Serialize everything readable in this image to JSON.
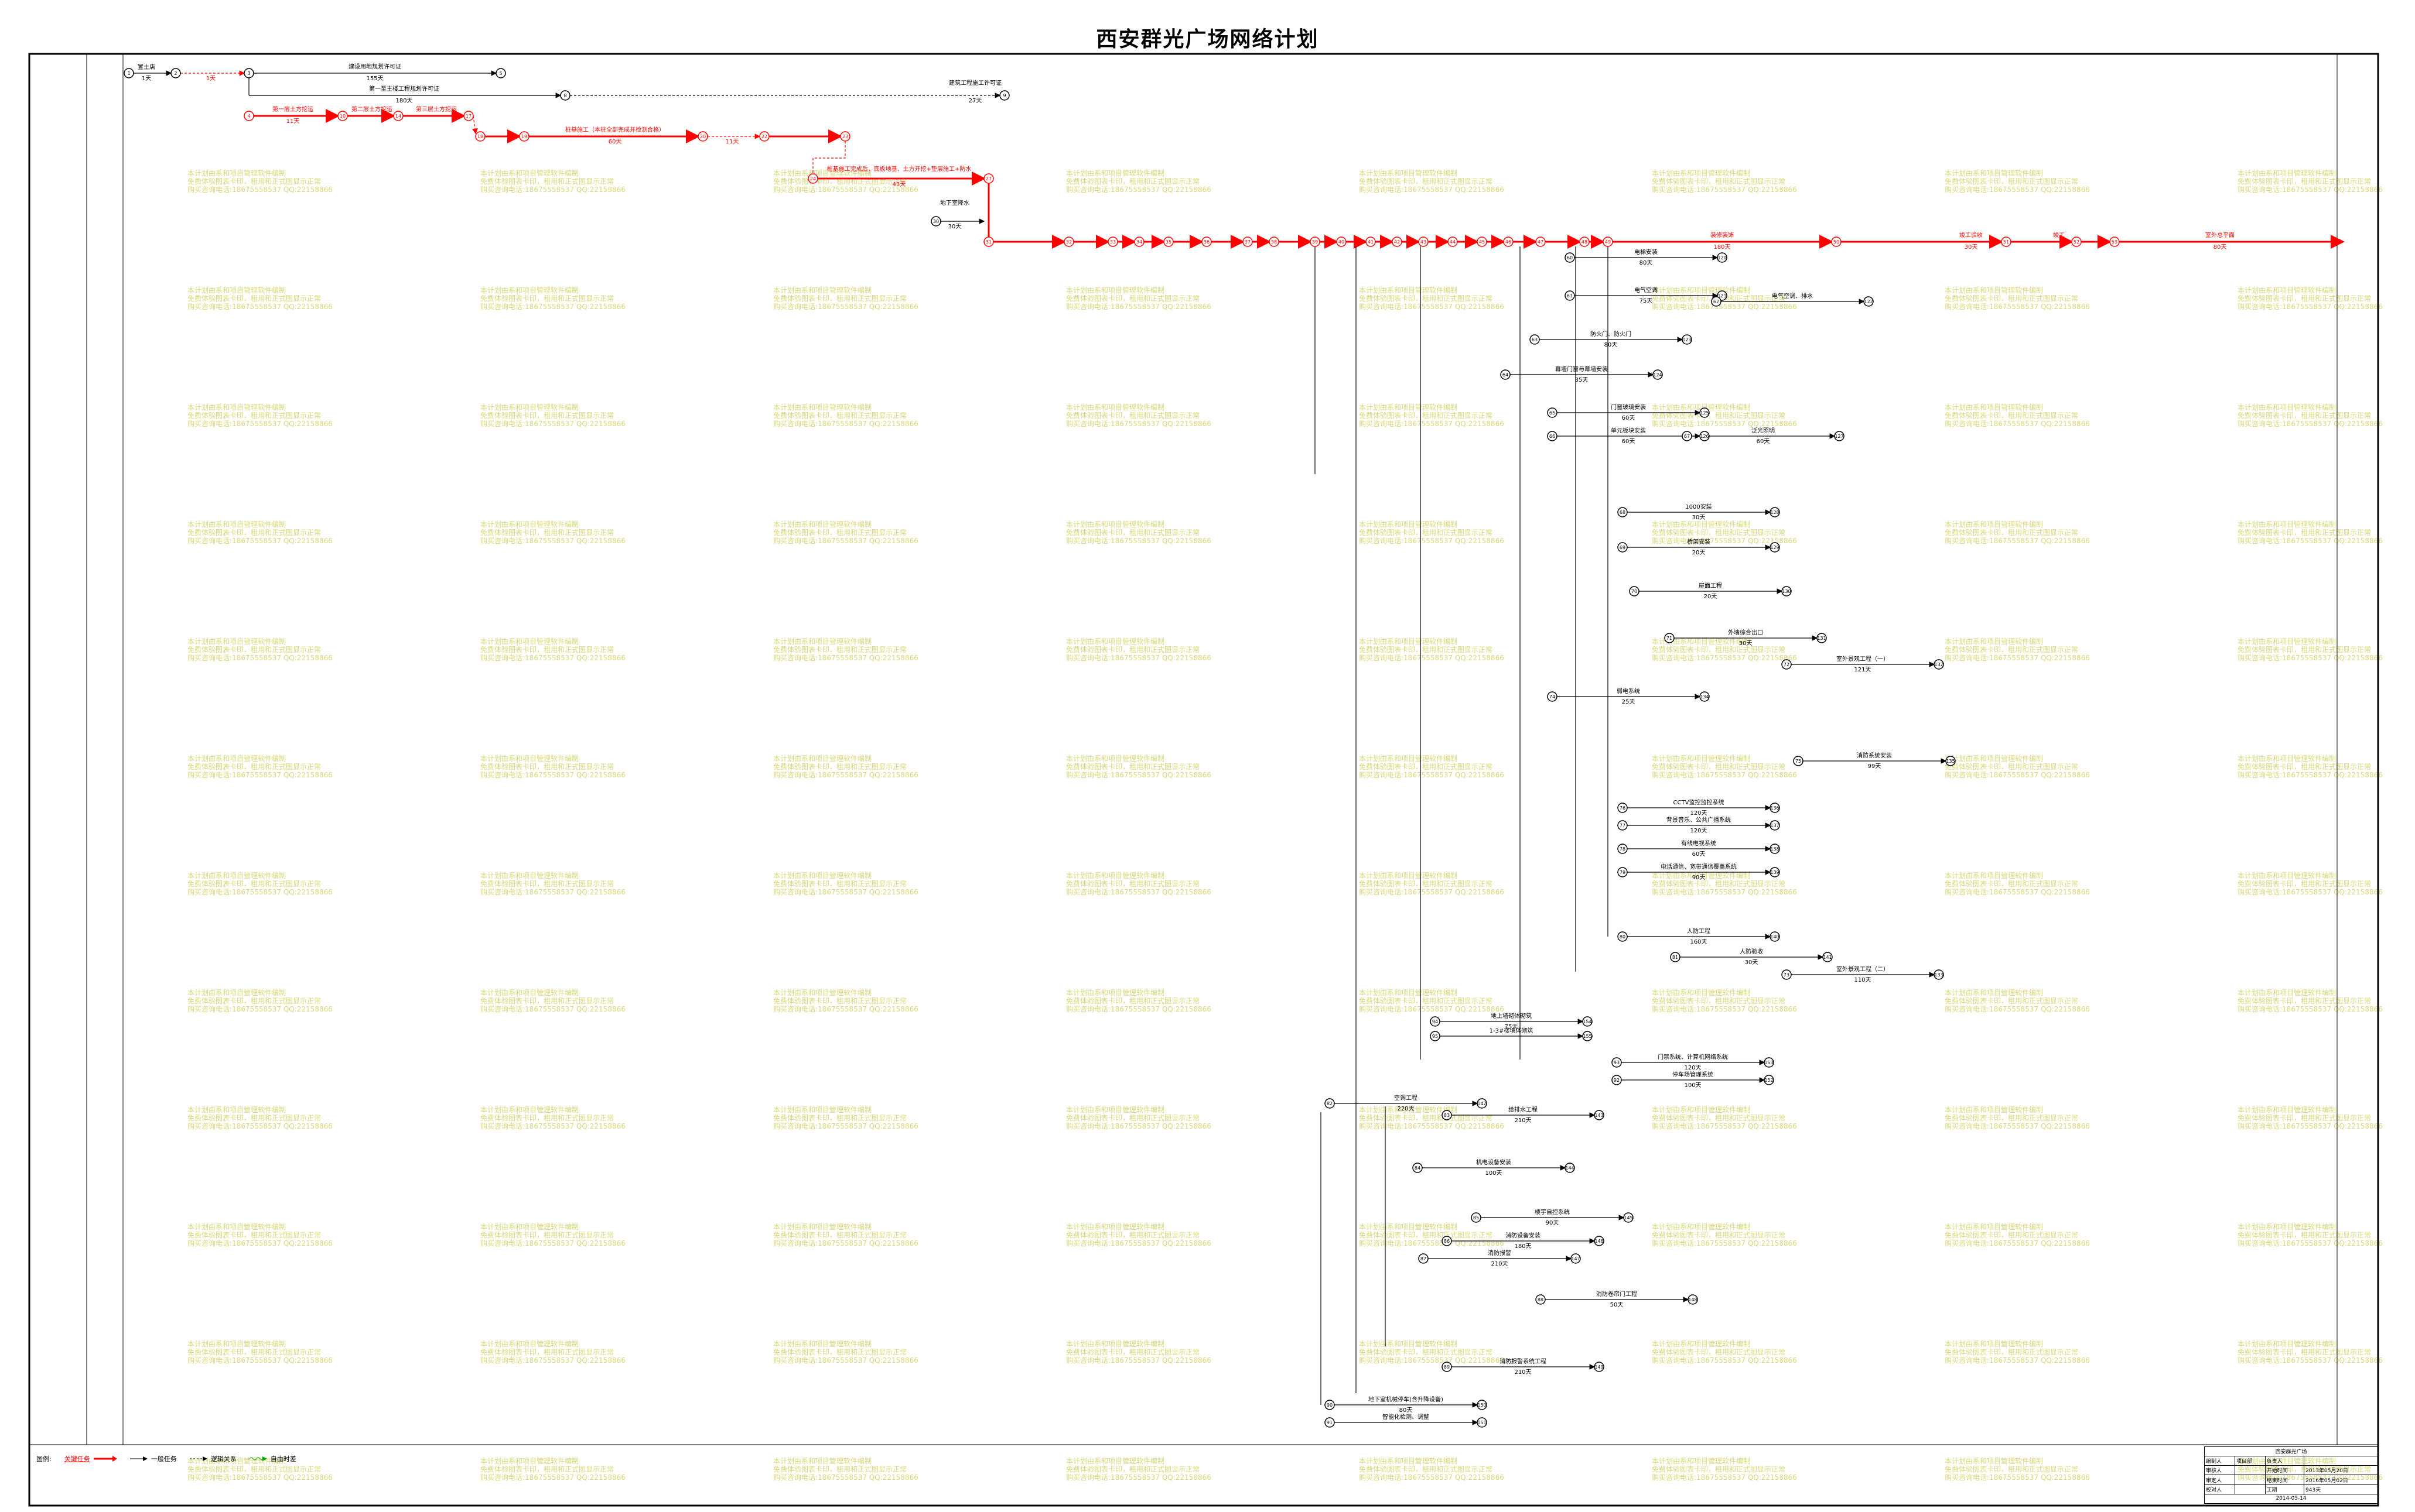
{
  "title": "西安群光广场网络计划",
  "watermark": {
    "lines": [
      "本计划由系和项目管理软件编制",
      "免费体验图表卡印，租用和正式图显示正常",
      "购买咨询电话:18675558537 QQ:22158866"
    ],
    "color": "#d8d87a"
  },
  "colors": {
    "critical": "#ff0000",
    "normal": "#000000",
    "accent_fill": "#ffcccc"
  },
  "diagram": {
    "critical_path": [
      {
        "from": "1",
        "to": "2",
        "label": "置土店",
        "duration": "1天"
      },
      {
        "from": "2",
        "to": "3",
        "label": "",
        "duration": "1天"
      },
      {
        "from": "4",
        "to": "10",
        "label": "第一层土方挖运",
        "duration": "11天"
      },
      {
        "from": "10",
        "to": "14",
        "label": "第二层土方挖运",
        "duration": "9天"
      },
      {
        "from": "14",
        "to": "17",
        "label": "第三层土方挖运",
        "duration": "14天"
      },
      {
        "from": "17",
        "to": "20",
        "label": "桩基施工（本桩全部完成并检测合格）",
        "duration": "60天"
      },
      {
        "from": "20",
        "to": "23",
        "label": "",
        "duration": "11天"
      },
      {
        "from": "24",
        "to": "27",
        "label": "桩基施工完成后，底板地基、土方开挖+垫层施工+防水",
        "duration": "43天"
      },
      {
        "from": "27",
        "to": "31",
        "label": "",
        "duration": "35天"
      },
      {
        "from": "31",
        "to": "55",
        "label": "",
        "duration": ""
      },
      {
        "from": "55",
        "to": "61",
        "label": "",
        "duration": ""
      },
      {
        "from": "61",
        "to": "89",
        "label": "装修装饰",
        "duration": "180天"
      },
      {
        "from": "89",
        "to": "92",
        "label": "竣工验收",
        "duration": "30天"
      },
      {
        "from": "92",
        "to": "94",
        "label": "竣工",
        "duration": "1天"
      },
      {
        "from": "94",
        "to": "END",
        "label": "室外总平面",
        "duration": "80天"
      }
    ],
    "top_tasks": [
      {
        "label": "建设用地规划许可证",
        "duration": "155天"
      },
      {
        "label": "第一至主楼工程规划许可证",
        "duration": "180天"
      },
      {
        "label": "建筑工程施工许可证",
        "duration": "27天"
      },
      {
        "label": "地下室降水",
        "duration": "30天"
      }
    ],
    "tasks": [
      {
        "label": "电梯安装",
        "duration": "80天"
      },
      {
        "label": "电气空调",
        "duration": "75天"
      },
      {
        "label": "电气空调、排水",
        "duration": ""
      },
      {
        "label": "防火门、防火门",
        "duration": "80天"
      },
      {
        "label": "幕墙门窗与幕墙安装",
        "duration": "35天"
      },
      {
        "label": "门窗玻璃安装",
        "duration": "60天"
      },
      {
        "label": "单元板块安装",
        "duration": "60天"
      },
      {
        "label": "泛光照明",
        "duration": "60天"
      },
      {
        "label": "1000安装",
        "duration": "30天"
      },
      {
        "label": "桥架安装",
        "duration": "20天"
      },
      {
        "label": "屋面工程",
        "duration": "20天"
      },
      {
        "label": "外墙综合出口",
        "duration": "30天"
      },
      {
        "label": "室外景观工程（一）",
        "duration": "121天"
      },
      {
        "label": "室外景观工程（二）",
        "duration": "110天"
      },
      {
        "label": "弱电系统",
        "duration": "25天"
      },
      {
        "label": "消防系统安装",
        "duration": "99天"
      },
      {
        "label": "CCTV监控监控系统",
        "duration": "120天"
      },
      {
        "label": "背景音乐、公共广播系统",
        "duration": "120天"
      },
      {
        "label": "有线电视系统",
        "duration": "60天"
      },
      {
        "label": "电话通信、宽带通信覆盖系统",
        "duration": "90天"
      },
      {
        "label": "人防工程",
        "duration": "160天"
      },
      {
        "label": "人防验收",
        "duration": "30天"
      },
      {
        "label": "空调工程",
        "duration": "220天"
      },
      {
        "label": "给排水工程",
        "duration": "210天"
      },
      {
        "label": "机电设备安装",
        "duration": "100天"
      },
      {
        "label": "楼宇自控系统",
        "duration": "90天"
      },
      {
        "label": "消防设备安装",
        "duration": "180天"
      },
      {
        "label": "消防报警",
        "duration": "210天"
      },
      {
        "label": "消防卷帘门工程",
        "duration": "50天"
      },
      {
        "label": "消防报警系统工程",
        "duration": "210天"
      },
      {
        "label": "地下室机械停车(含升降设备)",
        "duration": "80天"
      },
      {
        "label": "智能化检测、调整",
        "duration": ""
      },
      {
        "label": "停车场管理系统",
        "duration": "100天"
      },
      {
        "label": "门禁系统、计算机网络系统",
        "duration": "120天"
      },
      {
        "label": "地上墙砌体砌筑",
        "duration": "75天"
      },
      {
        "label": "1-3#楼墙体砌筑",
        "duration": ""
      }
    ]
  },
  "legend": {
    "label": "图例:",
    "items": [
      {
        "label": "关键任务",
        "kind": "critical"
      },
      {
        "label": "一般任务",
        "kind": "normal"
      },
      {
        "label": "逻辑关系",
        "kind": "dashed"
      },
      {
        "label": "自由时差",
        "kind": "float"
      }
    ]
  },
  "title_block": {
    "project": "西安群光广场",
    "rows": [
      [
        "编制人",
        "项目部",
        "负责人",
        ""
      ],
      [
        "审核人",
        "",
        "开始时间",
        "2013年05月20日"
      ],
      [
        "审定人",
        "",
        "结束时间",
        "2016年05月02日"
      ],
      [
        "校对人",
        "",
        "工期",
        "943天"
      ]
    ],
    "date": "2014-05-14"
  }
}
